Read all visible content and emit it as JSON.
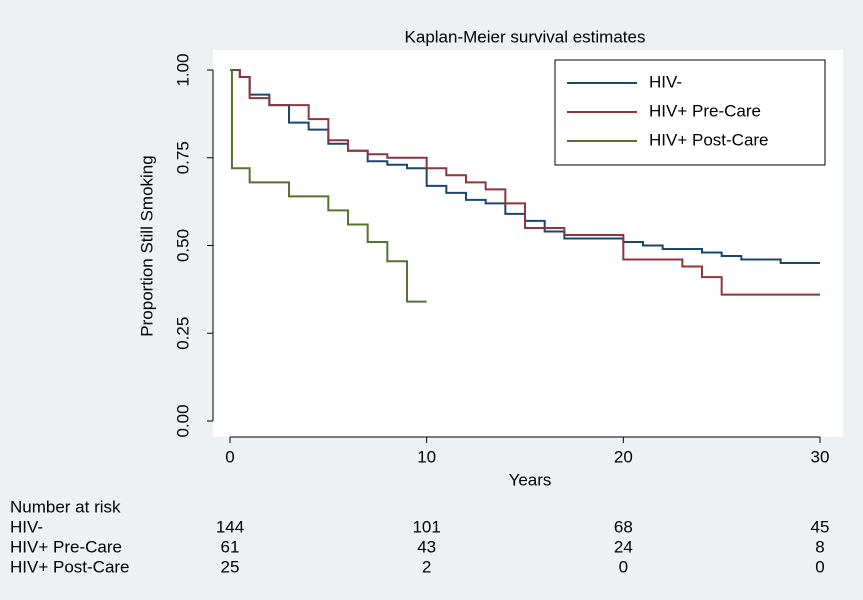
{
  "chart_data": {
    "type": "step",
    "title": "Kaplan-Meier survival estimates",
    "x_label": "Years",
    "y_label": "Proportion Still Smoking",
    "xlim": [
      0,
      30
    ],
    "xticks": [
      0,
      10,
      20,
      30
    ],
    "ylim": [
      0,
      1
    ],
    "yticks": [
      {
        "value": 0,
        "label": "0.00"
      },
      {
        "value": 0.25,
        "label": "0.25"
      },
      {
        "value": 0.5,
        "label": "0.50"
      },
      {
        "value": 0.75,
        "label": "0.75"
      },
      {
        "value": 1,
        "label": "1.00"
      }
    ],
    "legend": "top-right",
    "series": [
      {
        "name": "HIV-",
        "color": "#1a476f",
        "x": [
          0,
          0.5,
          1,
          2,
          3,
          4,
          5,
          6,
          7,
          8,
          9,
          10,
          11,
          12,
          13,
          14,
          15,
          16,
          17,
          20,
          21,
          22,
          24,
          25,
          26,
          28,
          30
        ],
        "values": [
          1,
          0.98,
          0.93,
          0.9,
          0.85,
          0.83,
          0.79,
          0.77,
          0.74,
          0.73,
          0.72,
          0.67,
          0.65,
          0.63,
          0.62,
          0.59,
          0.57,
          0.54,
          0.52,
          0.51,
          0.5,
          0.49,
          0.48,
          0.47,
          0.46,
          0.45,
          0.45
        ]
      },
      {
        "name": "HIV+ Pre-Care",
        "color": "#90353b",
        "x": [
          0,
          0.5,
          1,
          2,
          4,
          5,
          6,
          7,
          8,
          10,
          11,
          12,
          13,
          14,
          15,
          17,
          20,
          23,
          24,
          25,
          30
        ],
        "values": [
          1,
          0.98,
          0.92,
          0.9,
          0.86,
          0.8,
          0.77,
          0.76,
          0.75,
          0.72,
          0.7,
          0.68,
          0.66,
          0.62,
          0.55,
          0.53,
          0.46,
          0.44,
          0.41,
          0.36,
          0.36
        ]
      },
      {
        "name": "HIV+ Post-Care",
        "color": "#55752f",
        "x": [
          0,
          0.1,
          1,
          3,
          5,
          6,
          7,
          8,
          9,
          10
        ],
        "values": [
          1,
          0.72,
          0.68,
          0.64,
          0.6,
          0.56,
          0.51,
          0.455,
          0.34,
          0.34
        ]
      }
    ]
  },
  "risk_table": {
    "title": "Number at risk",
    "times": [
      0,
      10,
      20,
      30
    ],
    "rows": [
      {
        "label": "HIV-",
        "values": [
          144,
          101,
          68,
          45
        ]
      },
      {
        "label": "HIV+ Pre-Care",
        "values": [
          61,
          43,
          24,
          8
        ]
      },
      {
        "label": "HIV+ Post-Care",
        "values": [
          25,
          2,
          0,
          0
        ]
      }
    ]
  }
}
